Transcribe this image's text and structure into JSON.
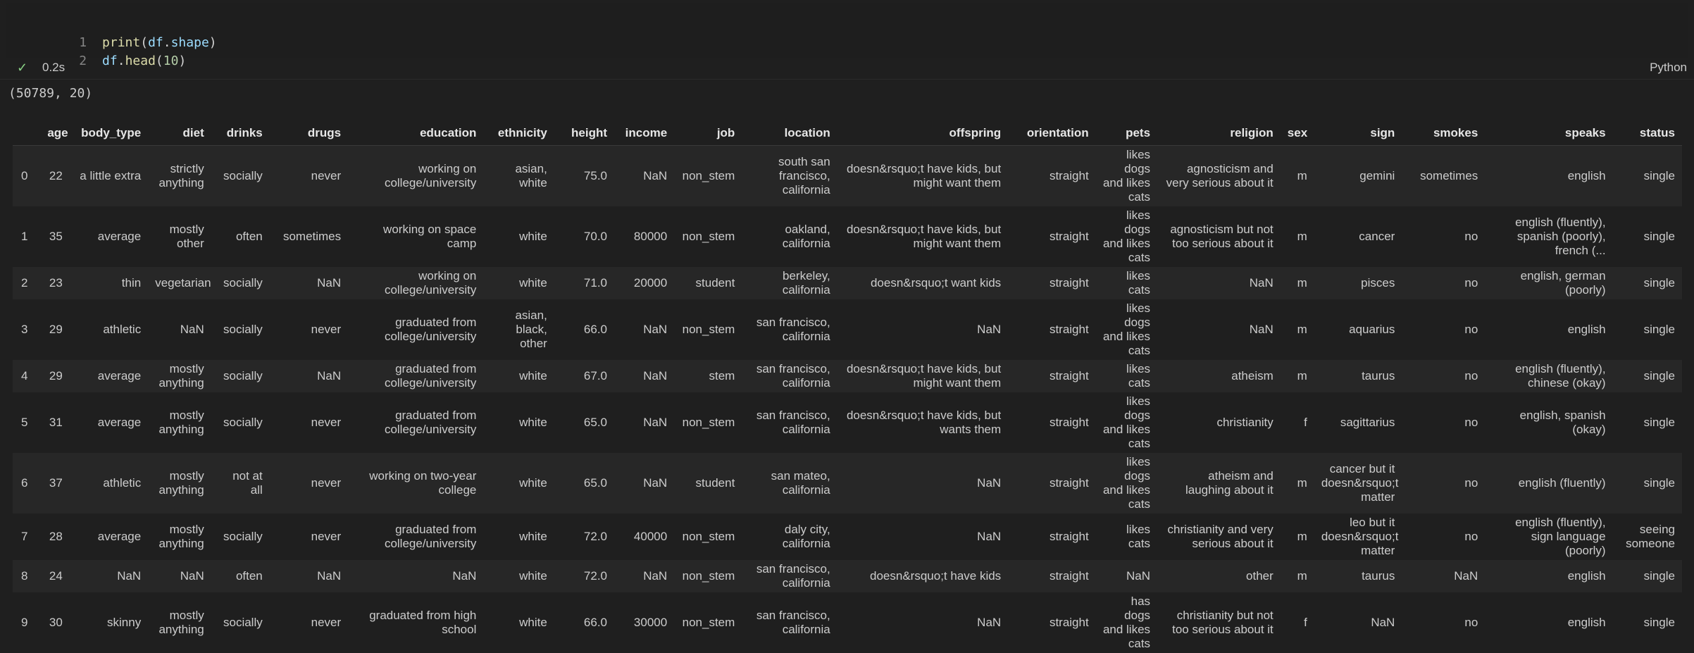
{
  "code": {
    "lines": [
      {
        "num": "1",
        "fn": "print",
        "open": "(",
        "obj": "df",
        "dot": ".",
        "attr": "shape",
        "close": ")"
      },
      {
        "num": "2",
        "obj": "df",
        "dot": ".",
        "method": "head",
        "open": "(",
        "arg": "10",
        "close": ")"
      }
    ]
  },
  "status": {
    "check_icon": "check-icon",
    "exec_time": "0.2s",
    "language": "Python"
  },
  "output": {
    "shape_text": "(50789, 20)"
  },
  "table": {
    "columns": [
      "",
      "age",
      "body_type",
      "diet",
      "drinks",
      "drugs",
      "education",
      "ethnicity",
      "height",
      "income",
      "job",
      "location",
      "offspring",
      "orientation",
      "pets",
      "religion",
      "sex",
      "sign",
      "smokes",
      "speaks",
      "status"
    ],
    "rows": [
      [
        "0",
        "22",
        "a little extra",
        "strictly anything",
        "socially",
        "never",
        "working on college/university",
        "asian, white",
        "75.0",
        "NaN",
        "non_stem",
        "south san francisco, california",
        "doesn&rsquo;t have kids, but might want them",
        "straight",
        "likes dogs and likes cats",
        "agnosticism and very serious about it",
        "m",
        "gemini",
        "sometimes",
        "english",
        "single"
      ],
      [
        "1",
        "35",
        "average",
        "mostly other",
        "often",
        "sometimes",
        "working on space camp",
        "white",
        "70.0",
        "80000",
        "non_stem",
        "oakland, california",
        "doesn&rsquo;t have kids, but might want them",
        "straight",
        "likes dogs and likes cats",
        "agnosticism but not too serious about it",
        "m",
        "cancer",
        "no",
        "english (fluently), spanish (poorly), french (...",
        "single"
      ],
      [
        "2",
        "23",
        "thin",
        "vegetarian",
        "socially",
        "NaN",
        "working on college/university",
        "white",
        "71.0",
        "20000",
        "student",
        "berkeley, california",
        "doesn&rsquo;t want kids",
        "straight",
        "likes cats",
        "NaN",
        "m",
        "pisces",
        "no",
        "english, german (poorly)",
        "single"
      ],
      [
        "3",
        "29",
        "athletic",
        "NaN",
        "socially",
        "never",
        "graduated from college/university",
        "asian, black, other",
        "66.0",
        "NaN",
        "non_stem",
        "san francisco, california",
        "NaN",
        "straight",
        "likes dogs and likes cats",
        "NaN",
        "m",
        "aquarius",
        "no",
        "english",
        "single"
      ],
      [
        "4",
        "29",
        "average",
        "mostly anything",
        "socially",
        "NaN",
        "graduated from college/university",
        "white",
        "67.0",
        "NaN",
        "stem",
        "san francisco, california",
        "doesn&rsquo;t have kids, but might want them",
        "straight",
        "likes cats",
        "atheism",
        "m",
        "taurus",
        "no",
        "english (fluently), chinese (okay)",
        "single"
      ],
      [
        "5",
        "31",
        "average",
        "mostly anything",
        "socially",
        "never",
        "graduated from college/university",
        "white",
        "65.0",
        "NaN",
        "non_stem",
        "san francisco, california",
        "doesn&rsquo;t have kids, but wants them",
        "straight",
        "likes dogs and likes cats",
        "christianity",
        "f",
        "sagittarius",
        "no",
        "english, spanish (okay)",
        "single"
      ],
      [
        "6",
        "37",
        "athletic",
        "mostly anything",
        "not at all",
        "never",
        "working on two-year college",
        "white",
        "65.0",
        "NaN",
        "student",
        "san mateo, california",
        "NaN",
        "straight",
        "likes dogs and likes cats",
        "atheism and laughing about it",
        "m",
        "cancer but it doesn&rsquo;t matter",
        "no",
        "english (fluently)",
        "single"
      ],
      [
        "7",
        "28",
        "average",
        "mostly anything",
        "socially",
        "never",
        "graduated from college/university",
        "white",
        "72.0",
        "40000",
        "non_stem",
        "daly city, california",
        "NaN",
        "straight",
        "likes cats",
        "christianity and very serious about it",
        "m",
        "leo but it doesn&rsquo;t matter",
        "no",
        "english (fluently), sign language (poorly)",
        "seeing someone"
      ],
      [
        "8",
        "24",
        "NaN",
        "NaN",
        "often",
        "NaN",
        "NaN",
        "white",
        "72.0",
        "NaN",
        "non_stem",
        "san francisco, california",
        "doesn&rsquo;t have kids",
        "straight",
        "NaN",
        "other",
        "m",
        "taurus",
        "NaN",
        "english",
        "single"
      ],
      [
        "9",
        "30",
        "skinny",
        "mostly anything",
        "socially",
        "never",
        "graduated from high school",
        "white",
        "66.0",
        "30000",
        "non_stem",
        "san francisco, california",
        "NaN",
        "straight",
        "has dogs and likes cats",
        "christianity but not too serious about it",
        "f",
        "NaN",
        "no",
        "english",
        "single"
      ]
    ]
  }
}
